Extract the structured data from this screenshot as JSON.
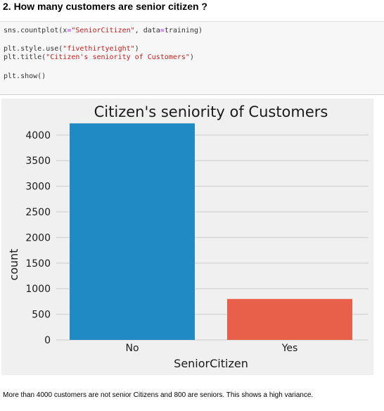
{
  "heading": "2. How many customers are senior citizen ?",
  "code": {
    "line1": {
      "a": "sns.countplot(x",
      "b": "=",
      "c": "\"SeniorCitizen\"",
      "d": ", data",
      "e": "=",
      "f": "training)"
    },
    "line2": {
      "a": "plt.style.use(",
      "b": "\"fivethirtyeight\"",
      "c": ")"
    },
    "line3": {
      "a": "plt.title(",
      "b": "\"Citizen's seniority of Customers\"",
      "c": ")"
    },
    "line4": "plt.show()"
  },
  "colors": {
    "chart_bg": "#f0f0f0",
    "grid": "#cbcbcb",
    "bar_no": "#1f8ac4",
    "bar_yes": "#e8604a",
    "text": "#1a1a1a"
  },
  "chart_data": {
    "type": "bar",
    "title": "Citizen's seniority of Customers",
    "xlabel": "SeniorCitizen",
    "ylabel": "count",
    "categories": [
      "No",
      "Yes"
    ],
    "values": [
      4227,
      800
    ],
    "ylim": [
      0,
      4300
    ],
    "yticks": [
      0,
      500,
      1000,
      1500,
      2000,
      2500,
      3000,
      3500,
      4000
    ],
    "grid": true
  },
  "caption": "More than 4000 customers are not senior Citizens and 800 are seniors. This shows a high variance."
}
